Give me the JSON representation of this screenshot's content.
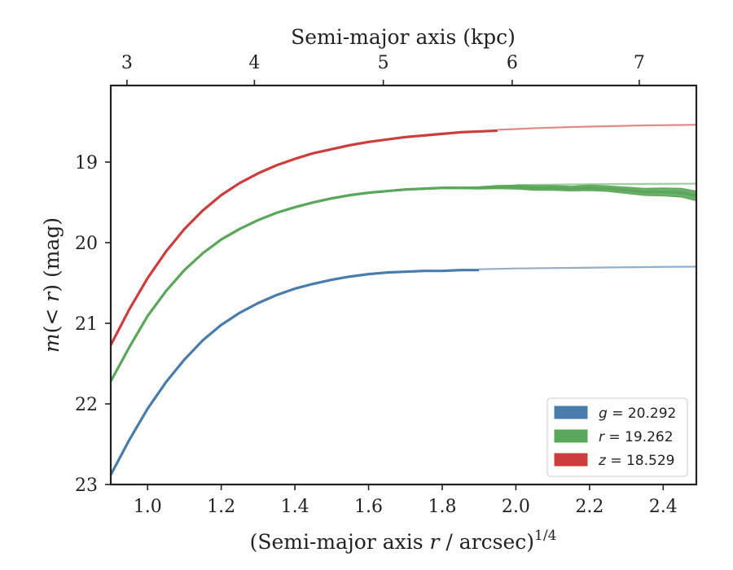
{
  "chart_data": {
    "type": "line",
    "xlabel_prefix": "(Semi-major axis ",
    "xlabel_var": "r",
    "xlabel_suffix": " / arcsec)",
    "xlabel_sup": "1/4",
    "ylabel_pre": "m",
    "ylabel_mid": "(< ",
    "ylabel_var": "r",
    "ylabel_post": ") (mag)",
    "top_xlabel": "Semi-major axis (kpc)",
    "xlim": [
      0.9,
      2.49
    ],
    "ylim": [
      23.0,
      18.05
    ],
    "y_inverted": true,
    "x_ticks": [
      1.0,
      1.2,
      1.4,
      1.6,
      1.8,
      2.0,
      2.2,
      2.4
    ],
    "x_tick_labels": [
      "1.0",
      "1.2",
      "1.4",
      "1.6",
      "1.8",
      "2.0",
      "2.2",
      "2.4"
    ],
    "y_ticks": [
      19,
      20,
      21,
      22,
      23
    ],
    "y_tick_labels": [
      "19",
      "20",
      "21",
      "22",
      "23"
    ],
    "top_ticks_kpc": [
      3,
      4,
      5,
      6,
      7
    ],
    "top_tick_labels": [
      "3",
      "4",
      "5",
      "6",
      "7"
    ],
    "top_tick_positions_x": [
      0.944,
      1.29,
      1.64,
      1.99,
      2.335
    ],
    "legend_position": "lower-right",
    "series": [
      {
        "name": "g = 20.292",
        "band": "g",
        "value": "20.292",
        "color": "#4a7cab",
        "model_color": "#8fb0cc",
        "asymptote": 20.292,
        "data_x": [
          0.9,
          0.95,
          1.0,
          1.05,
          1.1,
          1.15,
          1.2,
          1.25,
          1.3,
          1.35,
          1.4,
          1.45,
          1.5,
          1.55,
          1.6,
          1.65,
          1.7,
          1.75,
          1.8,
          1.85,
          1.9
        ],
        "data_y": [
          22.88,
          22.45,
          22.06,
          21.73,
          21.45,
          21.21,
          21.02,
          20.87,
          20.75,
          20.65,
          20.57,
          20.51,
          20.46,
          20.42,
          20.39,
          20.37,
          20.36,
          20.35,
          20.35,
          20.34,
          20.34
        ],
        "model_x": [
          1.9,
          2.0,
          2.1,
          2.2,
          2.3,
          2.4,
          2.49
        ],
        "model_y": [
          20.33,
          20.32,
          20.315,
          20.31,
          20.305,
          20.3,
          20.298
        ]
      },
      {
        "name": "r = 19.262",
        "band": "r",
        "value": "19.262",
        "color": "#5aa65a",
        "model_color": "#9fcf9f",
        "asymptote": 19.262,
        "data_x": [
          0.9,
          0.95,
          1.0,
          1.05,
          1.1,
          1.15,
          1.2,
          1.25,
          1.3,
          1.35,
          1.4,
          1.45,
          1.5,
          1.55,
          1.6,
          1.65,
          1.7,
          1.75,
          1.8,
          1.85,
          1.9,
          1.95,
          2.0,
          2.05,
          2.1,
          2.15,
          2.2,
          2.25,
          2.3,
          2.35,
          2.4,
          2.45,
          2.49
        ],
        "data_y": [
          21.72,
          21.3,
          20.91,
          20.6,
          20.34,
          20.13,
          19.96,
          19.83,
          19.72,
          19.63,
          19.56,
          19.5,
          19.45,
          19.41,
          19.38,
          19.36,
          19.34,
          19.33,
          19.32,
          19.32,
          19.32,
          19.31,
          19.31,
          19.32,
          19.32,
          19.33,
          19.32,
          19.33,
          19.35,
          19.37,
          19.37,
          19.38,
          19.42
        ],
        "band_halfwidth": [
          0.01,
          0.01,
          0.01,
          0.01,
          0.01,
          0.01,
          0.01,
          0.01,
          0.01,
          0.01,
          0.01,
          0.01,
          0.01,
          0.01,
          0.01,
          0.01,
          0.01,
          0.01,
          0.01,
          0.01,
          0.015,
          0.02,
          0.025,
          0.03,
          0.03,
          0.03,
          0.035,
          0.035,
          0.04,
          0.045,
          0.05,
          0.055,
          0.06
        ],
        "model_x": [
          2.0,
          2.1,
          2.2,
          2.3,
          2.4,
          2.49
        ],
        "model_y": [
          19.285,
          19.28,
          19.275,
          19.272,
          19.27,
          19.268
        ]
      },
      {
        "name": "z = 18.529",
        "band": "z",
        "value": "18.529",
        "color": "#cc3e3e",
        "model_color": "#e2898a",
        "asymptote": 18.529,
        "data_x": [
          0.9,
          0.95,
          1.0,
          1.05,
          1.1,
          1.15,
          1.2,
          1.25,
          1.3,
          1.35,
          1.4,
          1.45,
          1.5,
          1.55,
          1.6,
          1.65,
          1.7,
          1.75,
          1.8,
          1.85,
          1.9,
          1.95
        ],
        "data_y": [
          21.27,
          20.83,
          20.44,
          20.11,
          19.83,
          19.6,
          19.41,
          19.26,
          19.14,
          19.04,
          18.96,
          18.89,
          18.84,
          18.79,
          18.75,
          18.72,
          18.69,
          18.67,
          18.65,
          18.63,
          18.62,
          18.61
        ],
        "model_x": [
          1.95,
          2.05,
          2.15,
          2.25,
          2.35,
          2.45,
          2.49
        ],
        "model_y": [
          18.6,
          18.58,
          18.565,
          18.555,
          18.545,
          18.54,
          18.537
        ]
      }
    ]
  }
}
